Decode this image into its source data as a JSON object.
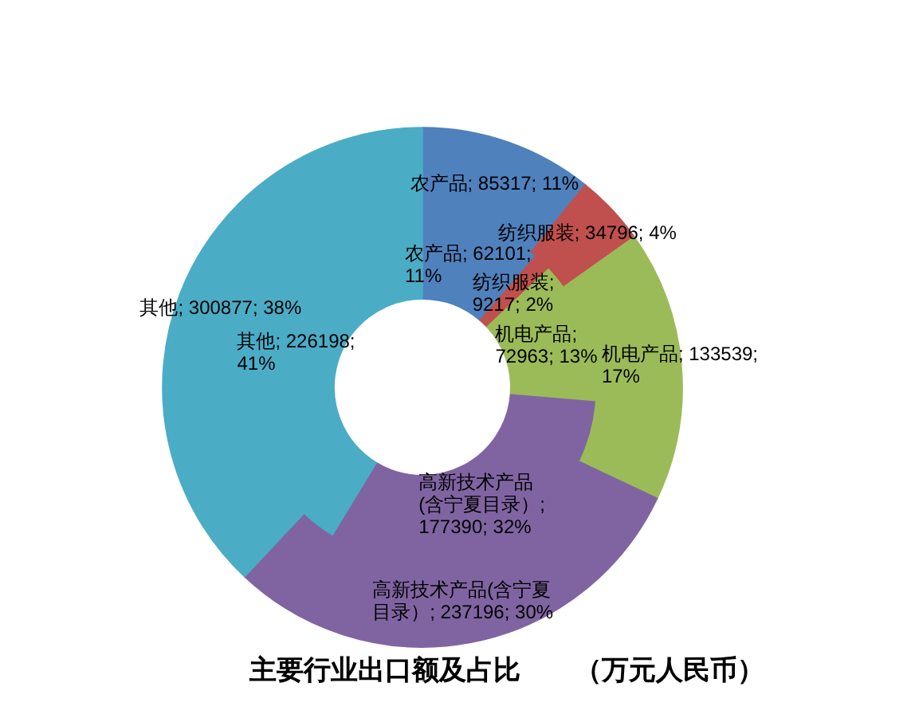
{
  "chart_data": {
    "type": "donut",
    "title": "主要行业出口额及占比　　（万元人民币）",
    "categories": [
      "农产品",
      "纺织服装",
      "机电产品",
      "高新技术产品(含宁夏目录）",
      "其他"
    ],
    "series": [
      {
        "values": [
          62101,
          9217,
          72963,
          177390,
          226198
        ],
        "colors": [
          "#4f81bd",
          "#c0504d",
          "#9bbb59",
          "#8064a2",
          "#4bacc6"
        ],
        "value_labels": [
          "; 62101; 11%",
          "; 9217; 2%",
          "; 72963; 13%",
          "; 177390; 32%",
          "; 226198; 41%"
        ]
      },
      {
        "values": [
          85317,
          34796,
          133539,
          237196,
          300877
        ],
        "colors": [
          "#4f81bd",
          "#c0504d",
          "#9bbb59",
          "#8064a2",
          "#4bacc6"
        ],
        "value_labels": [
          "; 85317; 11%",
          "; 34796; 4%",
          "; 133539; 17%",
          "; 237196; 30%",
          "; 300877; 38%"
        ]
      }
    ]
  }
}
